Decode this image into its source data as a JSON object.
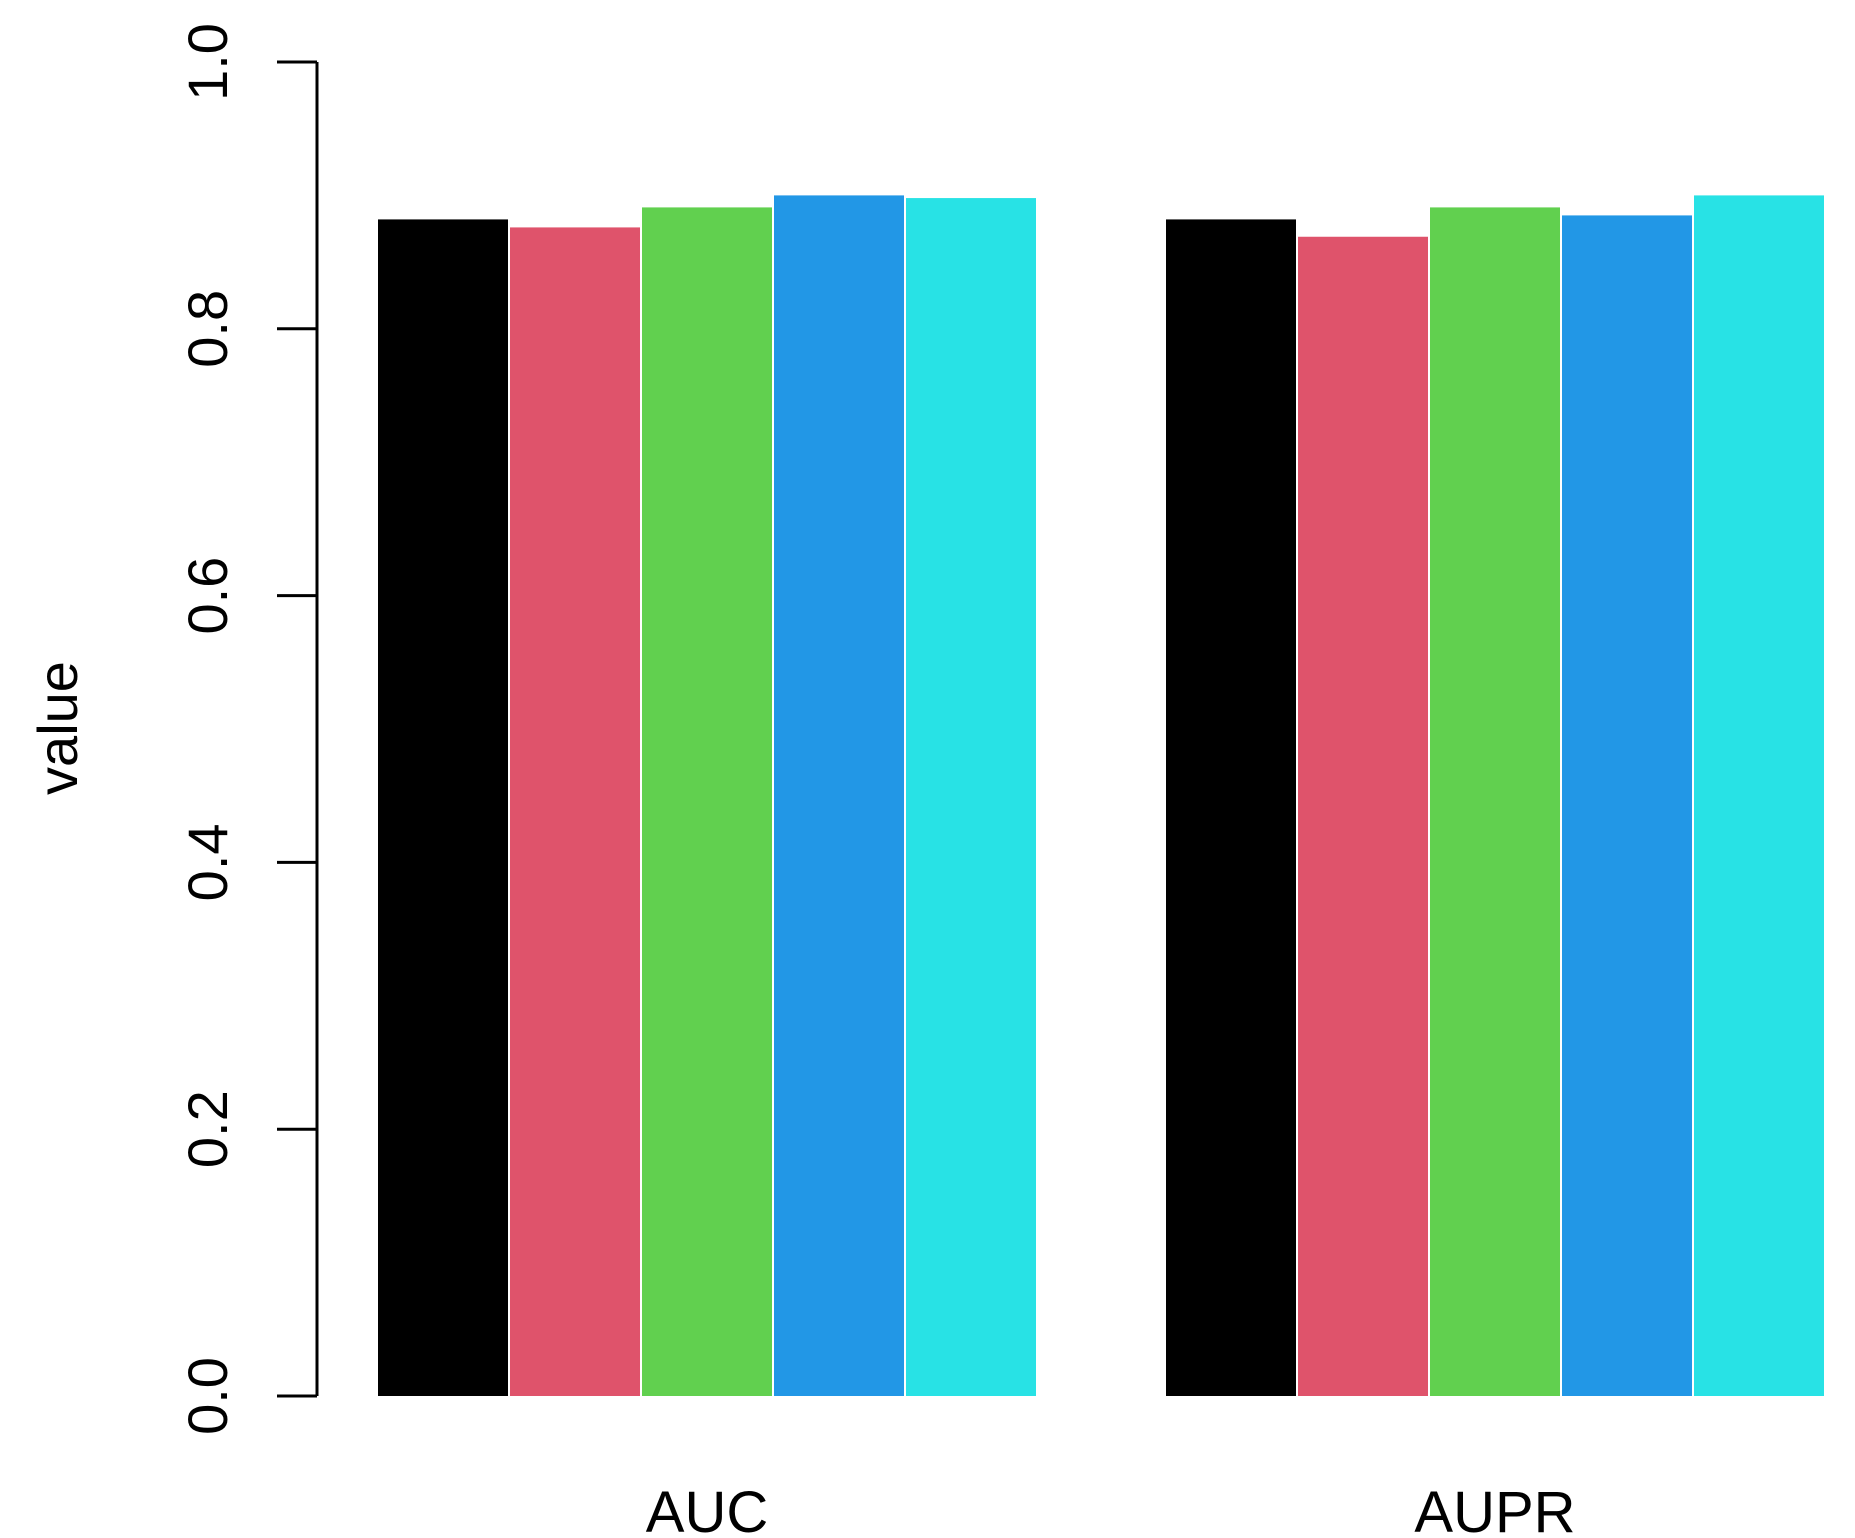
{
  "chart_data": {
    "type": "bar",
    "title": "",
    "xlabel": "",
    "ylabel": "value",
    "ylim": [
      0,
      1
    ],
    "yticks": [
      "0.0",
      "0.2",
      "0.4",
      "0.6",
      "0.8",
      "1.0"
    ],
    "grid": false,
    "legend": "none",
    "categories": [
      "AUC",
      "AUPR"
    ],
    "series": [
      {
        "color": "#000000",
        "values": [
          0.882,
          0.882
        ]
      },
      {
        "color": "#DF536B",
        "values": [
          0.876,
          0.869
        ]
      },
      {
        "color": "#61D04F",
        "values": [
          0.891,
          0.891
        ]
      },
      {
        "color": "#2297E6",
        "values": [
          0.9,
          0.885
        ]
      },
      {
        "color": "#28E2E5",
        "values": [
          0.898,
          0.9
        ]
      }
    ]
  }
}
